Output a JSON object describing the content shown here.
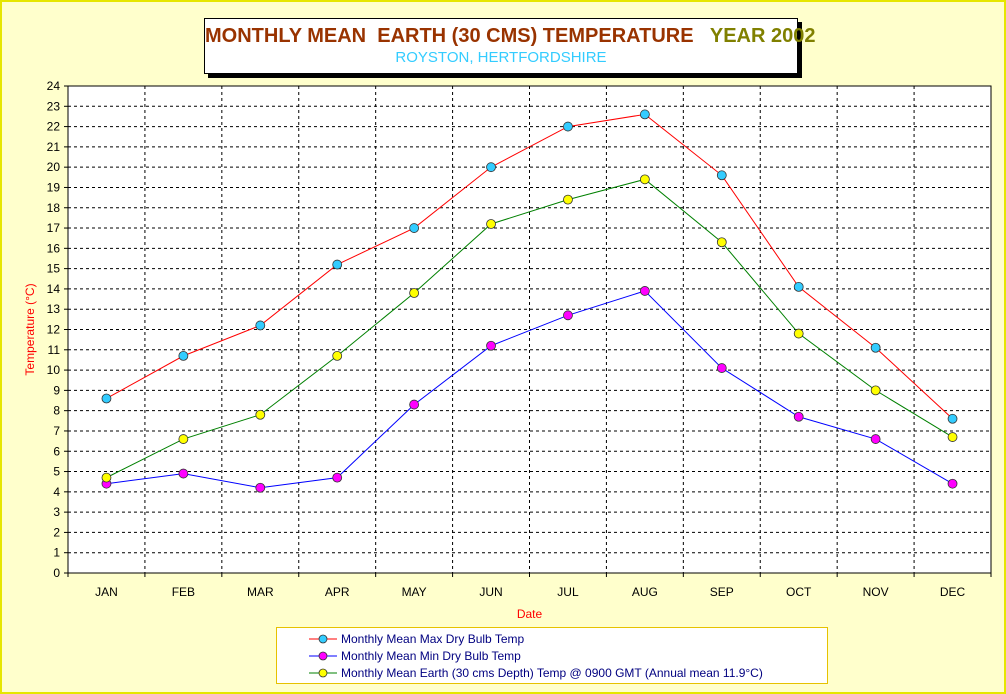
{
  "chart_data": {
    "type": "line",
    "title": "MONTHLY MEAN  EARTH (30 CMS) TEMPERATURE",
    "title_suffix": "YEAR 2002",
    "subtitle": "ROYSTON, HERTFORDSHIRE",
    "xlabel": "Date",
    "ylabel": "Temperature (°C)",
    "ylim": [
      0,
      24
    ],
    "ytick_step": 1,
    "grid": true,
    "legend_position": "bottom",
    "categories": [
      "JAN",
      "FEB",
      "MAR",
      "APR",
      "MAY",
      "JUN",
      "JUL",
      "AUG",
      "SEP",
      "OCT",
      "NOV",
      "DEC"
    ],
    "series": [
      {
        "name": "Monthly Mean Max Dry Bulb Temp",
        "line_color": "#ff0000",
        "marker_color": "#33ccff",
        "values": [
          8.6,
          10.7,
          12.2,
          15.2,
          17.0,
          20.0,
          22.0,
          22.6,
          19.6,
          14.1,
          11.1,
          7.6
        ]
      },
      {
        "name": "Monthly Mean Min Dry Bulb Temp",
        "line_color": "#0000ff",
        "marker_color": "#ff00ff",
        "values": [
          4.4,
          4.9,
          4.2,
          4.7,
          8.3,
          11.2,
          12.7,
          13.9,
          10.1,
          7.7,
          6.6,
          4.4
        ]
      },
      {
        "name": "Monthly Mean Earth (30 cms Depth) Temp @ 0900 GMT (Annual mean 11.9°C)",
        "line_color": "#008000",
        "marker_color": "#ffff00",
        "values": [
          4.7,
          6.6,
          7.8,
          10.7,
          13.8,
          17.2,
          18.4,
          19.4,
          16.3,
          11.8,
          9.0,
          6.7
        ]
      }
    ]
  },
  "colors": {
    "background": "#ffffcc",
    "frame": "#e6e600",
    "title": "#993300",
    "year": "#808000",
    "subtitle": "#33ccff",
    "axis_label": "#ff0000",
    "legend_text": "#000080"
  }
}
